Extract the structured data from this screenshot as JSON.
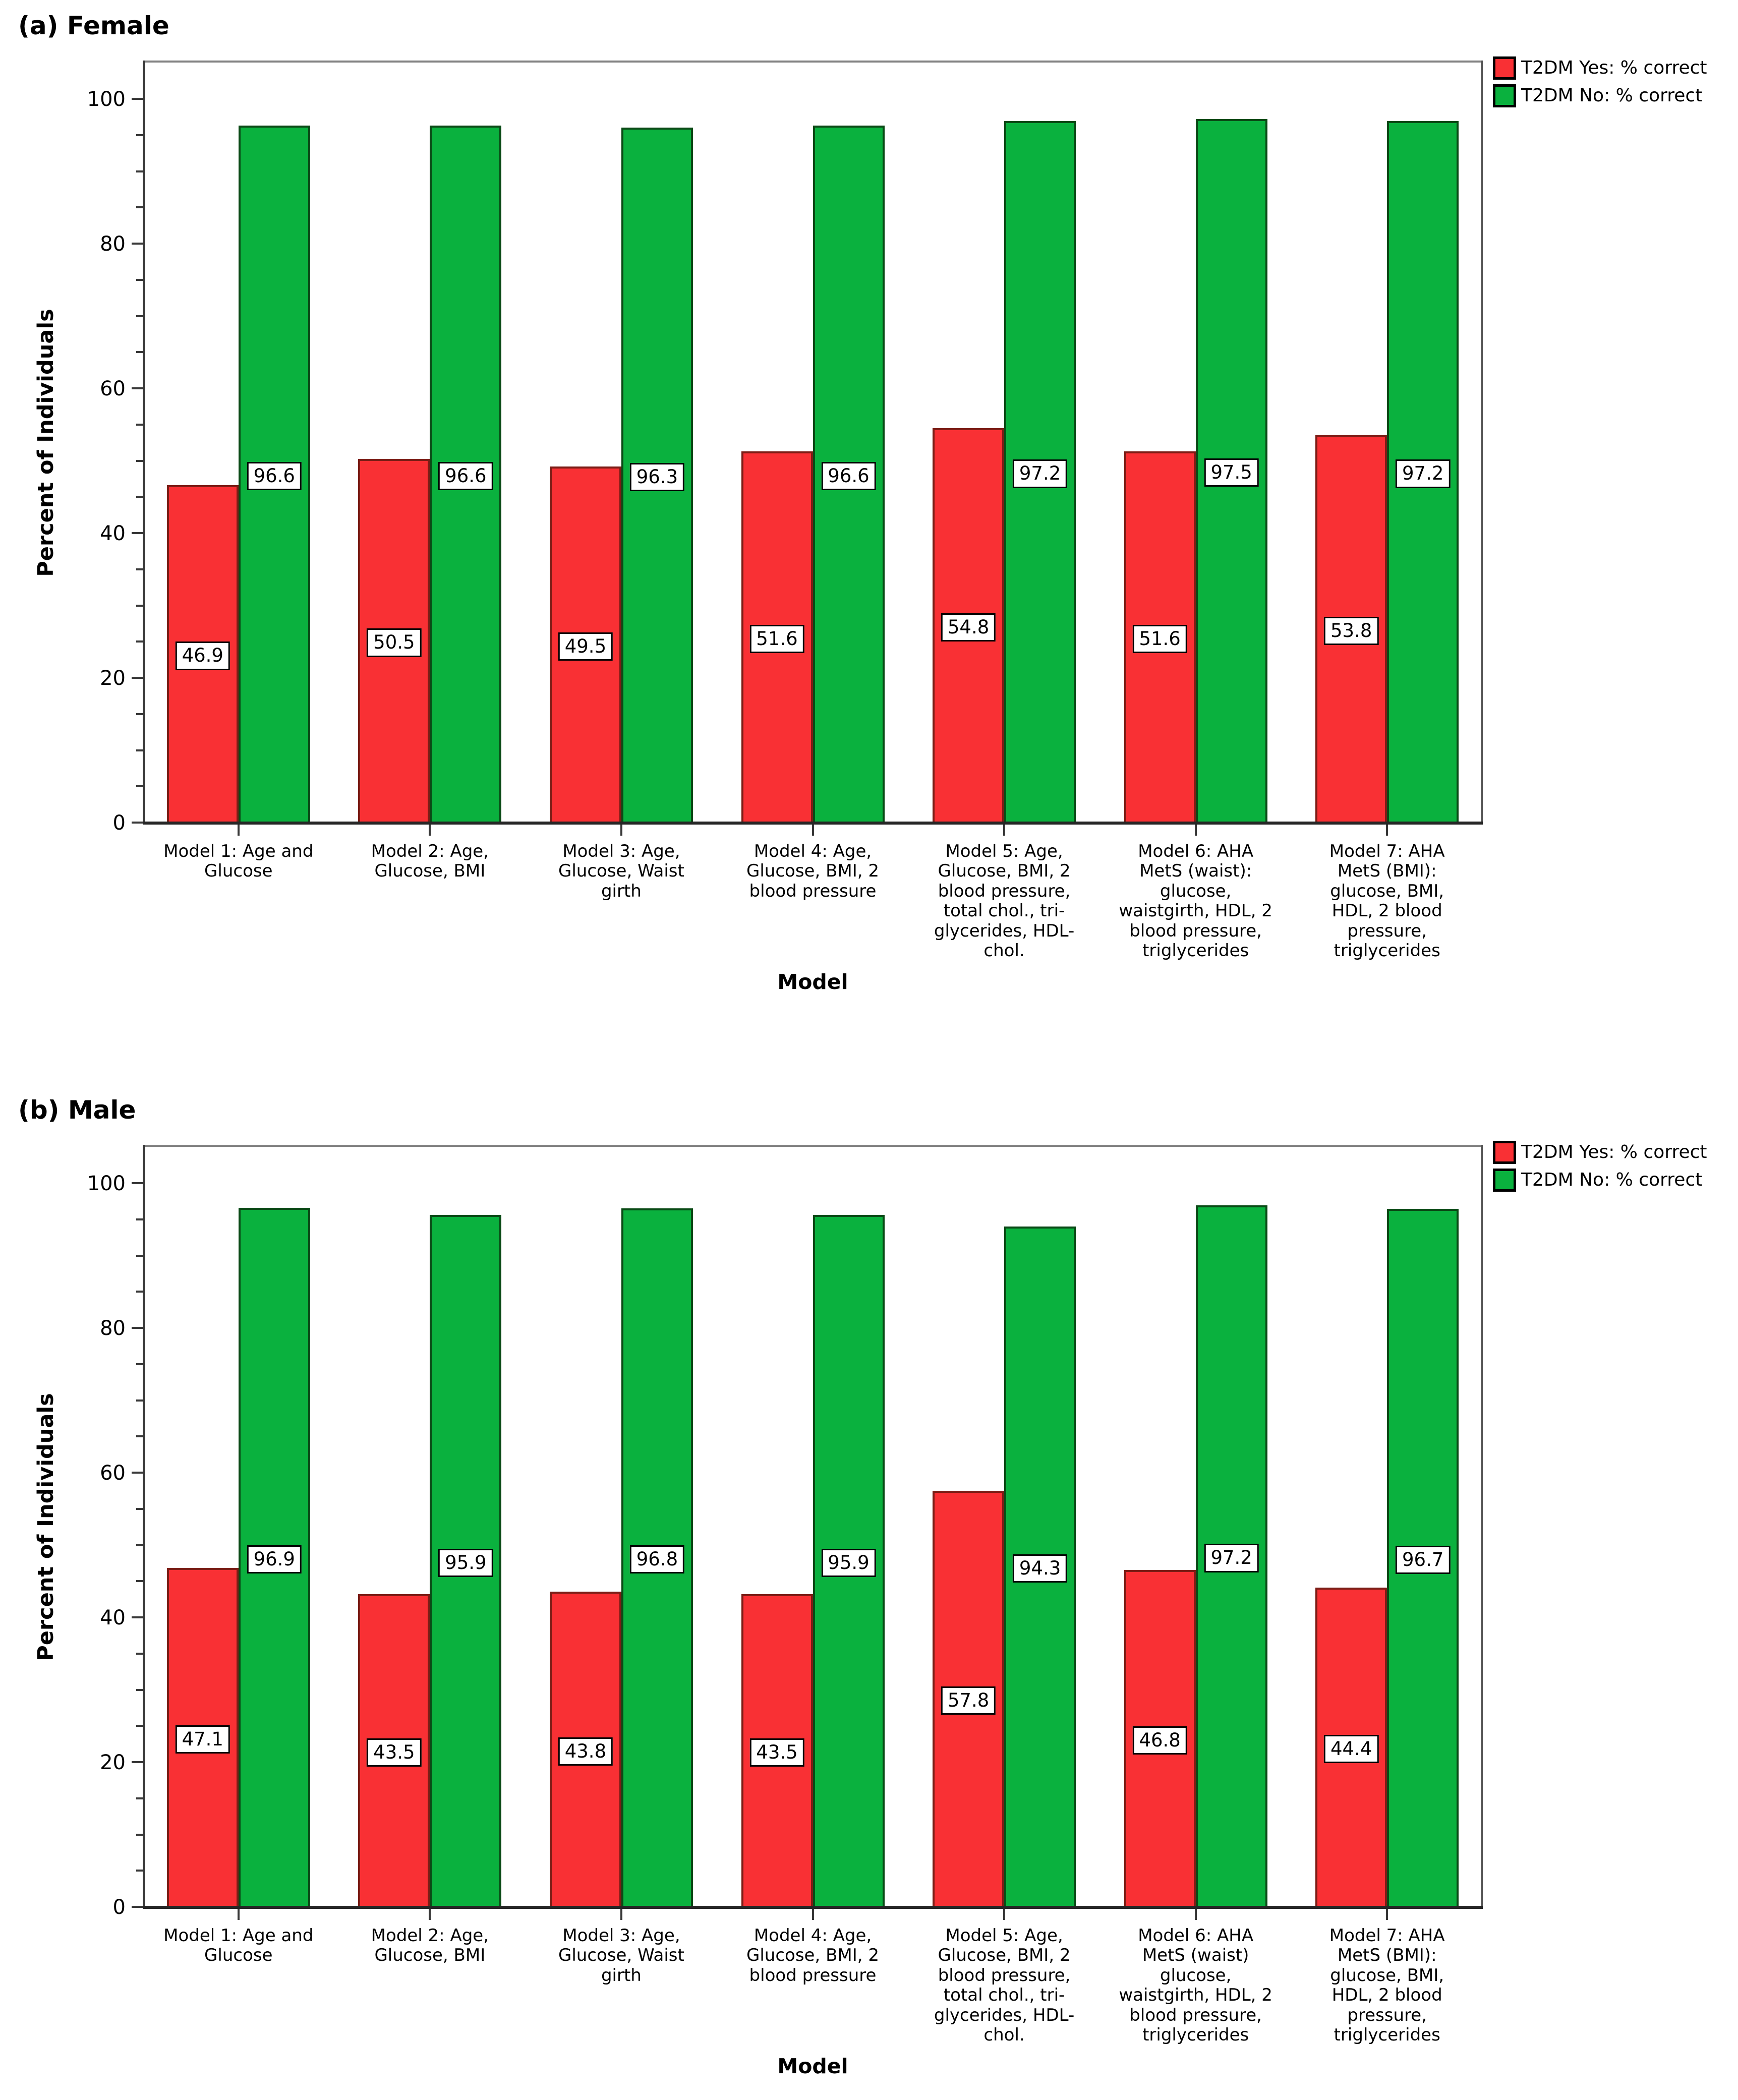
{
  "colors": {
    "bar_yes_fill": "#f93034",
    "bar_yes_border": "#7c1d16",
    "bar_no_fill": "#0ab13e",
    "bar_no_border": "#0a4a16",
    "axis": "#383838",
    "frame_top": "#828282",
    "frame_right": "#565656",
    "label_box_bg": "#ffffff",
    "label_box_border": "#000000"
  },
  "legend": {
    "items": [
      {
        "label": "T2DM Yes: % correct",
        "color_key": "bar_yes_fill",
        "border_key": "bar_yes_border"
      },
      {
        "label": "T2DM No: % correct",
        "color_key": "bar_no_fill",
        "border_key": "bar_no_border"
      }
    ]
  },
  "chart_data": [
    {
      "type": "bar",
      "title": "(a) Female",
      "xlabel": "Model",
      "ylabel": "Percent of Individuals",
      "ylim": [
        0,
        100
      ],
      "y_major_ticks": [
        0,
        20,
        40,
        60,
        80,
        100
      ],
      "y_minor_step": 5,
      "grid": false,
      "legend_position": "top-right-outside",
      "value_label_style": "white box, black border, centered at bar mid-height",
      "categories": [
        "Model 1: Age and\nGlucose",
        "Model 2: Age,\nGlucose, BMI",
        "Model 3: Age,\nGlucose, Waist\ngirth",
        "Model 4: Age,\nGlucose, BMI, 2\nblood pressure",
        "Model 5: Age,\nGlucose, BMI, 2\nblood pressure,\ntotal chol., tri-\nglycerides, HDL-\nchol.",
        "Model 6: AHA\nMetS (waist):\nglucose,\nwaistgirth, HDL, 2\nblood pressure,\ntriglycerides",
        "Model 7: AHA\nMetS (BMI):\nglucose, BMI,\nHDL, 2 blood\npressure,\ntriglycerides"
      ],
      "series": [
        {
          "name": "T2DM Yes: % correct",
          "values": [
            46.9,
            50.5,
            49.5,
            51.6,
            54.8,
            51.6,
            53.8
          ]
        },
        {
          "name": "T2DM No: % correct",
          "values": [
            96.6,
            96.6,
            96.3,
            96.6,
            97.2,
            97.5,
            97.2
          ]
        }
      ]
    },
    {
      "type": "bar",
      "title": "(b) Male",
      "xlabel": "Model",
      "ylabel": "Percent of Individuals",
      "ylim": [
        0,
        100
      ],
      "y_major_ticks": [
        0,
        20,
        40,
        60,
        80,
        100
      ],
      "y_minor_step": 5,
      "grid": false,
      "legend_position": "top-right-outside",
      "value_label_style": "white box, black border, centered at bar mid-height",
      "categories": [
        "Model 1: Age and\nGlucose",
        "Model 2: Age,\nGlucose, BMI",
        "Model 3: Age,\nGlucose, Waist\ngirth",
        "Model 4: Age,\nGlucose, BMI, 2\nblood pressure",
        "Model 5: Age,\nGlucose, BMI, 2\nblood pressure,\ntotal chol., tri-\nglycerides, HDL-\nchol.",
        "Model 6: AHA\nMetS (waist)\nglucose,\nwaistgirth, HDL, 2\nblood pressure,\ntriglycerides",
        "Model 7: AHA\nMetS (BMI):\nglucose, BMI,\nHDL, 2 blood\npressure,\ntriglycerides"
      ],
      "series": [
        {
          "name": "T2DM Yes: % correct",
          "values": [
            47.1,
            43.5,
            43.8,
            43.5,
            57.8,
            46.8,
            44.4
          ]
        },
        {
          "name": "T2DM No: % correct",
          "values": [
            96.9,
            95.9,
            96.8,
            95.9,
            94.3,
            97.2,
            96.7
          ]
        }
      ]
    }
  ]
}
